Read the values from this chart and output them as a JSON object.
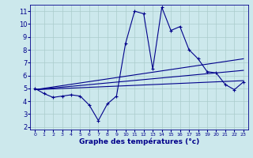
{
  "xlabel": "Graphe des températures (°c)",
  "background_color": "#cce8ec",
  "grid_color": "#aacccc",
  "line_color": "#00008b",
  "xlim": [
    -0.5,
    23.5
  ],
  "ylim": [
    1.8,
    11.5
  ],
  "yticks": [
    2,
    3,
    4,
    5,
    6,
    7,
    8,
    9,
    10,
    11
  ],
  "xticks": [
    0,
    1,
    2,
    3,
    4,
    5,
    6,
    7,
    8,
    9,
    10,
    11,
    12,
    13,
    14,
    15,
    16,
    17,
    18,
    19,
    20,
    21,
    22,
    23
  ],
  "series1_x": [
    0,
    1,
    2,
    3,
    4,
    5,
    6,
    7,
    8,
    9,
    10,
    11,
    12,
    13,
    14,
    15,
    16,
    17,
    18,
    19,
    20,
    21,
    22,
    23
  ],
  "series1_y": [
    5.0,
    4.6,
    4.3,
    4.4,
    4.5,
    4.4,
    3.7,
    2.5,
    3.8,
    4.4,
    8.5,
    11.0,
    10.8,
    6.5,
    11.3,
    9.5,
    9.8,
    8.0,
    7.3,
    6.3,
    6.2,
    5.3,
    4.9,
    5.5
  ],
  "series2_x": [
    0,
    23
  ],
  "series2_y": [
    4.9,
    7.3
  ],
  "series3_x": [
    0,
    23
  ],
  "series3_y": [
    4.9,
    6.4
  ],
  "series4_x": [
    0,
    23
  ],
  "series4_y": [
    4.9,
    5.6
  ]
}
